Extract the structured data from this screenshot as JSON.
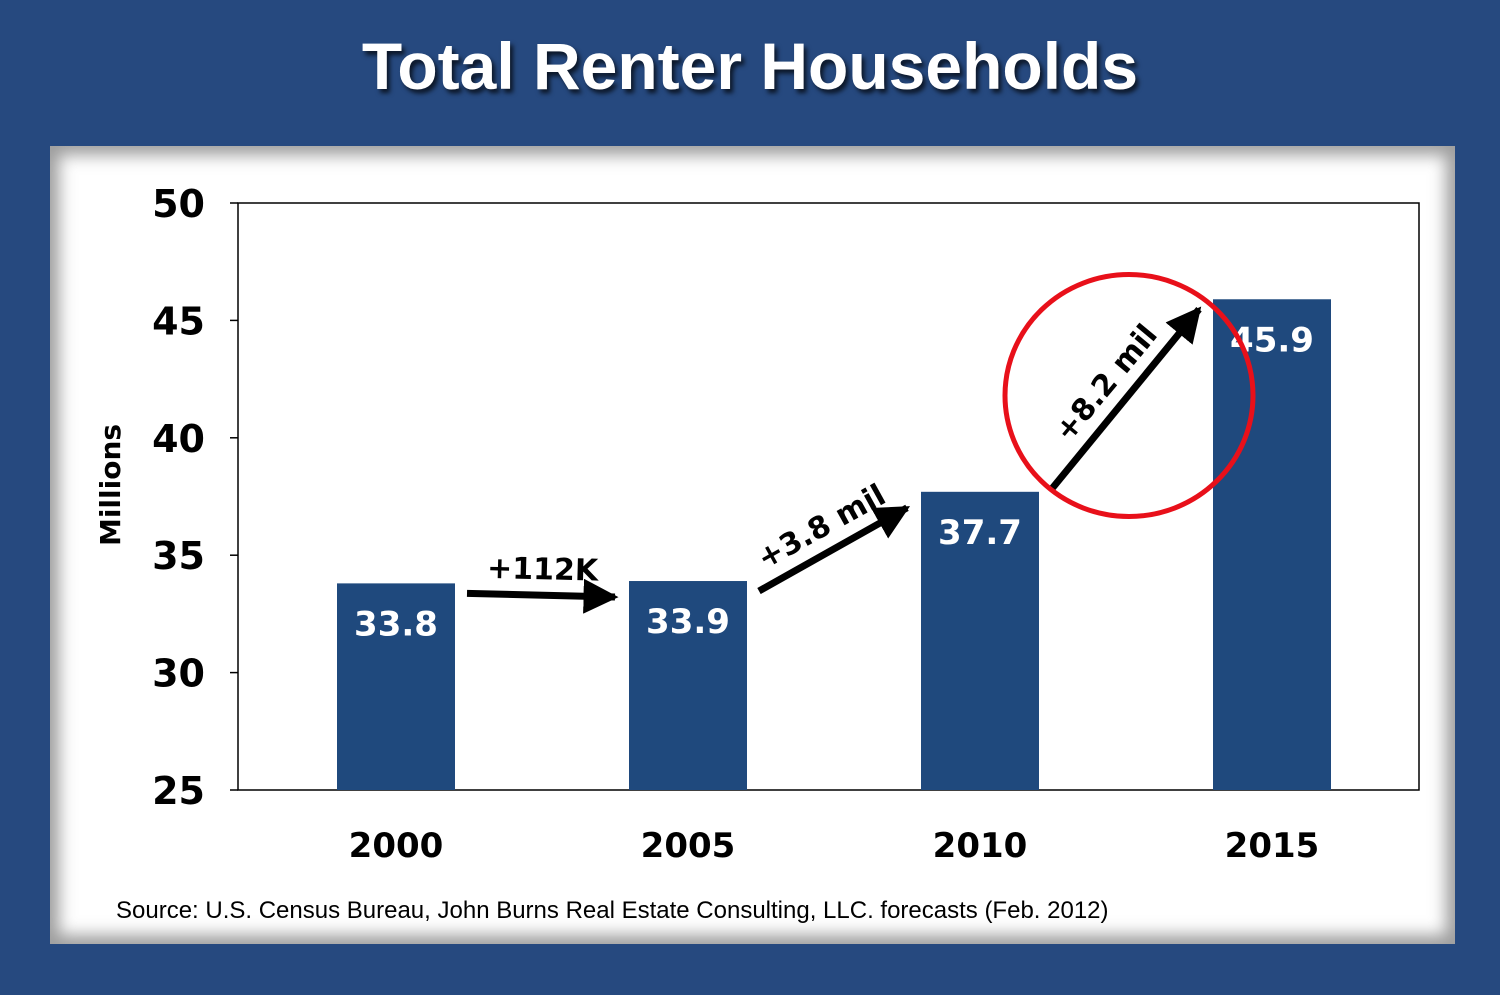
{
  "title": "Total Renter Households",
  "source": "Source:  U.S. Census Bureau, John Burns Real Estate Consulting, LLC. forecasts (Feb. 2012)",
  "colors": {
    "background": "#26497f",
    "bar": "#1f497d",
    "highlight_circle": "#e8101a"
  },
  "chart_data": {
    "type": "bar",
    "categories": [
      "2000",
      "2005",
      "2010",
      "2015"
    ],
    "values": [
      33.8,
      33.9,
      37.7,
      45.9
    ],
    "value_labels": [
      "33.8",
      "33.9",
      "37.7",
      "45.9"
    ],
    "ylabel": "Millions",
    "ylim": [
      25,
      50
    ],
    "yticks": [
      25,
      30,
      35,
      40,
      45,
      50
    ],
    "grid": false,
    "annotations": [
      {
        "text": "+112K",
        "from": "2000",
        "to": "2005"
      },
      {
        "text": "+3.8 mil",
        "from": "2005",
        "to": "2010"
      },
      {
        "text": "+8.2 mil",
        "from": "2010",
        "to": "2015",
        "highlighted": true
      }
    ]
  }
}
